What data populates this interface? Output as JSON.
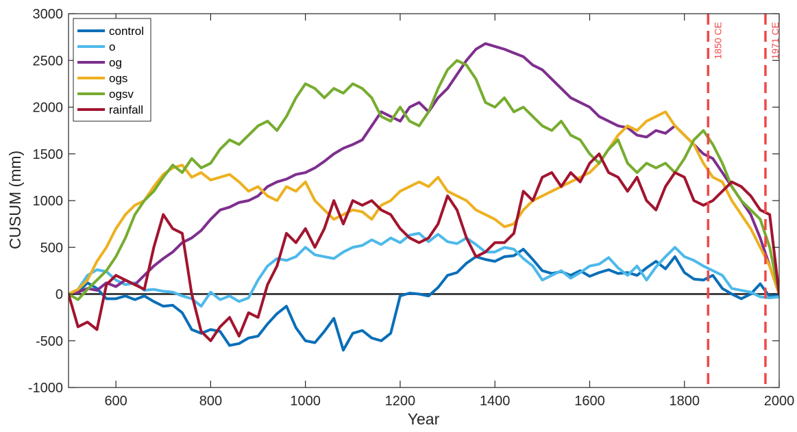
{
  "chart_data": {
    "type": "line",
    "xlabel": "Year",
    "ylabel": "CUSUM (mm)",
    "xlim": [
      500,
      2000
    ],
    "ylim": [
      -1000,
      3000
    ],
    "x_ticks": [
      600,
      800,
      1000,
      1200,
      1400,
      1600,
      1800,
      2000
    ],
    "y_ticks": [
      -1000,
      -500,
      0,
      500,
      1000,
      1500,
      2000,
      2500,
      3000
    ],
    "grid": false,
    "legend_position": "top-left",
    "zero_line": {
      "y": 0,
      "color": "#404040"
    },
    "annotations": [
      {
        "x": 1850,
        "label": "1850 CE",
        "color": "#f04848",
        "style": "dashed"
      },
      {
        "x": 1971,
        "label": "1971 CE",
        "color": "#f04848",
        "style": "dashed"
      }
    ],
    "series": [
      {
        "name": "control",
        "color": "#0a6fb8",
        "x": [
          500,
          520,
          540,
          560,
          580,
          600,
          620,
          640,
          660,
          680,
          700,
          720,
          740,
          760,
          780,
          800,
          820,
          840,
          860,
          880,
          900,
          920,
          940,
          960,
          980,
          1000,
          1020,
          1040,
          1060,
          1080,
          1100,
          1120,
          1140,
          1160,
          1180,
          1200,
          1220,
          1240,
          1260,
          1280,
          1300,
          1320,
          1340,
          1360,
          1380,
          1400,
          1420,
          1440,
          1460,
          1480,
          1500,
          1520,
          1540,
          1560,
          1580,
          1600,
          1620,
          1640,
          1660,
          1680,
          1700,
          1720,
          1740,
          1760,
          1780,
          1800,
          1820,
          1840,
          1860,
          1880,
          1900,
          1920,
          1940,
          1960,
          1980,
          2000
        ],
        "values": [
          0,
          20,
          120,
          60,
          -50,
          -50,
          -20,
          -60,
          -20,
          -80,
          -130,
          -120,
          -200,
          -380,
          -420,
          -380,
          -400,
          -550,
          -530,
          -470,
          -450,
          -320,
          -210,
          -130,
          -360,
          -500,
          -520,
          -400,
          -260,
          -600,
          -420,
          -390,
          -470,
          -500,
          -420,
          -20,
          10,
          0,
          -20,
          70,
          200,
          230,
          330,
          400,
          370,
          350,
          400,
          410,
          480,
          370,
          250,
          220,
          240,
          200,
          250,
          190,
          230,
          260,
          220,
          230,
          200,
          280,
          350,
          270,
          400,
          230,
          160,
          150,
          200,
          60,
          0,
          -50,
          0,
          110,
          -30,
          0
        ]
      },
      {
        "name": "o",
        "color": "#4db9ea",
        "x": [
          500,
          520,
          540,
          560,
          580,
          600,
          620,
          640,
          660,
          680,
          700,
          720,
          740,
          760,
          780,
          800,
          820,
          840,
          860,
          880,
          900,
          920,
          940,
          960,
          980,
          1000,
          1020,
          1040,
          1060,
          1080,
          1100,
          1120,
          1140,
          1160,
          1180,
          1200,
          1220,
          1240,
          1260,
          1280,
          1300,
          1320,
          1340,
          1360,
          1380,
          1400,
          1420,
          1440,
          1460,
          1480,
          1500,
          1520,
          1540,
          1560,
          1580,
          1600,
          1620,
          1640,
          1660,
          1680,
          1700,
          1720,
          1740,
          1760,
          1780,
          1800,
          1820,
          1840,
          1860,
          1880,
          1900,
          1920,
          1940,
          1960,
          1980,
          2000
        ],
        "values": [
          0,
          50,
          200,
          260,
          240,
          150,
          100,
          120,
          40,
          50,
          30,
          20,
          -20,
          -50,
          -130,
          20,
          -60,
          -20,
          -80,
          -40,
          150,
          300,
          380,
          360,
          400,
          500,
          420,
          400,
          380,
          450,
          500,
          520,
          580,
          530,
          600,
          550,
          630,
          650,
          560,
          640,
          560,
          540,
          600,
          530,
          450,
          450,
          500,
          480,
          380,
          300,
          150,
          200,
          250,
          170,
          230,
          300,
          320,
          390,
          280,
          200,
          300,
          150,
          290,
          400,
          500,
          400,
          360,
          300,
          250,
          200,
          60,
          40,
          20,
          -30,
          -40,
          -30
        ]
      },
      {
        "name": "og",
        "color": "#7e2f8e",
        "x": [
          500,
          520,
          540,
          560,
          580,
          600,
          620,
          640,
          660,
          680,
          700,
          720,
          740,
          760,
          780,
          800,
          820,
          840,
          860,
          880,
          900,
          920,
          940,
          960,
          980,
          1000,
          1020,
          1040,
          1060,
          1080,
          1100,
          1120,
          1140,
          1160,
          1180,
          1200,
          1220,
          1240,
          1260,
          1280,
          1300,
          1320,
          1340,
          1360,
          1380,
          1400,
          1420,
          1440,
          1460,
          1480,
          1500,
          1520,
          1540,
          1560,
          1580,
          1600,
          1620,
          1640,
          1660,
          1680,
          1700,
          1720,
          1740,
          1760,
          1780,
          1800,
          1820,
          1840,
          1860,
          1880,
          1900,
          1920,
          1940,
          1960,
          1980,
          2000
        ],
        "values": [
          0,
          20,
          60,
          40,
          120,
          80,
          150,
          100,
          200,
          300,
          380,
          450,
          550,
          600,
          680,
          800,
          900,
          930,
          980,
          1000,
          1050,
          1150,
          1200,
          1230,
          1280,
          1300,
          1350,
          1420,
          1500,
          1560,
          1600,
          1650,
          1800,
          1950,
          1900,
          1850,
          2000,
          2050,
          1950,
          2100,
          2200,
          2350,
          2500,
          2620,
          2680,
          2650,
          2620,
          2580,
          2540,
          2450,
          2400,
          2300,
          2200,
          2100,
          2050,
          2000,
          1900,
          1850,
          1800,
          1780,
          1700,
          1680,
          1750,
          1720,
          1800,
          1700,
          1600,
          1500,
          1450,
          1300,
          1150,
          1000,
          850,
          600,
          300,
          0
        ]
      },
      {
        "name": "ogs",
        "color": "#edb120",
        "x": [
          500,
          520,
          540,
          560,
          580,
          600,
          620,
          640,
          660,
          680,
          700,
          720,
          740,
          760,
          780,
          800,
          820,
          840,
          860,
          880,
          900,
          920,
          940,
          960,
          980,
          1000,
          1020,
          1040,
          1060,
          1080,
          1100,
          1120,
          1140,
          1160,
          1180,
          1200,
          1220,
          1240,
          1260,
          1280,
          1300,
          1320,
          1340,
          1360,
          1380,
          1400,
          1420,
          1440,
          1460,
          1480,
          1500,
          1520,
          1540,
          1560,
          1580,
          1600,
          1620,
          1640,
          1660,
          1680,
          1700,
          1720,
          1740,
          1760,
          1780,
          1800,
          1820,
          1840,
          1860,
          1880,
          1900,
          1920,
          1940,
          1960,
          1980,
          2000
        ],
        "values": [
          0,
          50,
          150,
          350,
          500,
          700,
          850,
          950,
          1000,
          1150,
          1280,
          1350,
          1380,
          1250,
          1300,
          1220,
          1250,
          1280,
          1200,
          1100,
          1150,
          1050,
          1000,
          1150,
          1100,
          1200,
          1000,
          900,
          800,
          850,
          900,
          880,
          800,
          950,
          1000,
          1100,
          1150,
          1200,
          1150,
          1250,
          1100,
          1050,
          1000,
          900,
          850,
          800,
          720,
          750,
          900,
          1000,
          1050,
          1100,
          1150,
          1200,
          1250,
          1300,
          1400,
          1550,
          1700,
          1800,
          1750,
          1850,
          1900,
          1950,
          1800,
          1700,
          1600,
          1400,
          1250,
          1200,
          1000,
          850,
          700,
          500,
          300,
          0
        ]
      },
      {
        "name": "ogsv",
        "color": "#77ac30",
        "x": [
          500,
          520,
          540,
          560,
          580,
          600,
          620,
          640,
          660,
          680,
          700,
          720,
          740,
          760,
          780,
          800,
          820,
          840,
          860,
          880,
          900,
          920,
          940,
          960,
          980,
          1000,
          1020,
          1040,
          1060,
          1080,
          1100,
          1120,
          1140,
          1160,
          1180,
          1200,
          1220,
          1240,
          1260,
          1280,
          1300,
          1320,
          1340,
          1360,
          1380,
          1400,
          1420,
          1440,
          1460,
          1480,
          1500,
          1520,
          1540,
          1560,
          1580,
          1600,
          1620,
          1640,
          1660,
          1680,
          1700,
          1720,
          1740,
          1760,
          1780,
          1800,
          1820,
          1840,
          1860,
          1880,
          1900,
          1920,
          1940,
          1960,
          1980,
          2000
        ],
        "values": [
          0,
          -60,
          50,
          150,
          250,
          400,
          600,
          850,
          1000,
          1100,
          1250,
          1380,
          1300,
          1450,
          1350,
          1400,
          1550,
          1650,
          1600,
          1700,
          1800,
          1850,
          1750,
          1900,
          2100,
          2250,
          2200,
          2100,
          2200,
          2150,
          2250,
          2200,
          2100,
          1900,
          1850,
          2000,
          1850,
          1800,
          1950,
          2200,
          2400,
          2500,
          2450,
          2300,
          2050,
          2000,
          2100,
          1950,
          2000,
          1900,
          1800,
          1750,
          1850,
          1700,
          1650,
          1500,
          1400,
          1550,
          1650,
          1400,
          1300,
          1400,
          1350,
          1400,
          1300,
          1450,
          1650,
          1750,
          1600,
          1400,
          1150,
          1000,
          900,
          800,
          500,
          0
        ]
      },
      {
        "name": "rainfall",
        "color": "#a2142f",
        "x": [
          500,
          520,
          540,
          560,
          580,
          600,
          620,
          640,
          660,
          680,
          700,
          720,
          740,
          760,
          780,
          800,
          820,
          840,
          860,
          880,
          900,
          920,
          940,
          960,
          980,
          1000,
          1020,
          1040,
          1060,
          1080,
          1100,
          1120,
          1140,
          1160,
          1180,
          1200,
          1220,
          1240,
          1260,
          1280,
          1300,
          1320,
          1340,
          1360,
          1380,
          1400,
          1420,
          1440,
          1460,
          1480,
          1500,
          1520,
          1540,
          1560,
          1580,
          1600,
          1620,
          1640,
          1660,
          1680,
          1700,
          1720,
          1740,
          1760,
          1780,
          1800,
          1820,
          1840,
          1860,
          1880,
          1900,
          1920,
          1940,
          1960,
          1980,
          2000
        ],
        "values": [
          0,
          -350,
          -300,
          -380,
          100,
          200,
          150,
          100,
          50,
          500,
          850,
          700,
          650,
          0,
          -400,
          -500,
          -350,
          -250,
          -450,
          -200,
          -250,
          100,
          300,
          650,
          550,
          700,
          500,
          700,
          1000,
          750,
          1000,
          950,
          1000,
          900,
          850,
          700,
          600,
          550,
          600,
          750,
          1050,
          900,
          600,
          400,
          450,
          550,
          550,
          650,
          1100,
          1000,
          1250,
          1300,
          1150,
          1300,
          1200,
          1400,
          1500,
          1300,
          1250,
          1100,
          1250,
          1000,
          900,
          1150,
          1300,
          1250,
          1000,
          950,
          1000,
          1100,
          1200,
          1150,
          1050,
          900,
          850,
          0
        ]
      }
    ]
  }
}
